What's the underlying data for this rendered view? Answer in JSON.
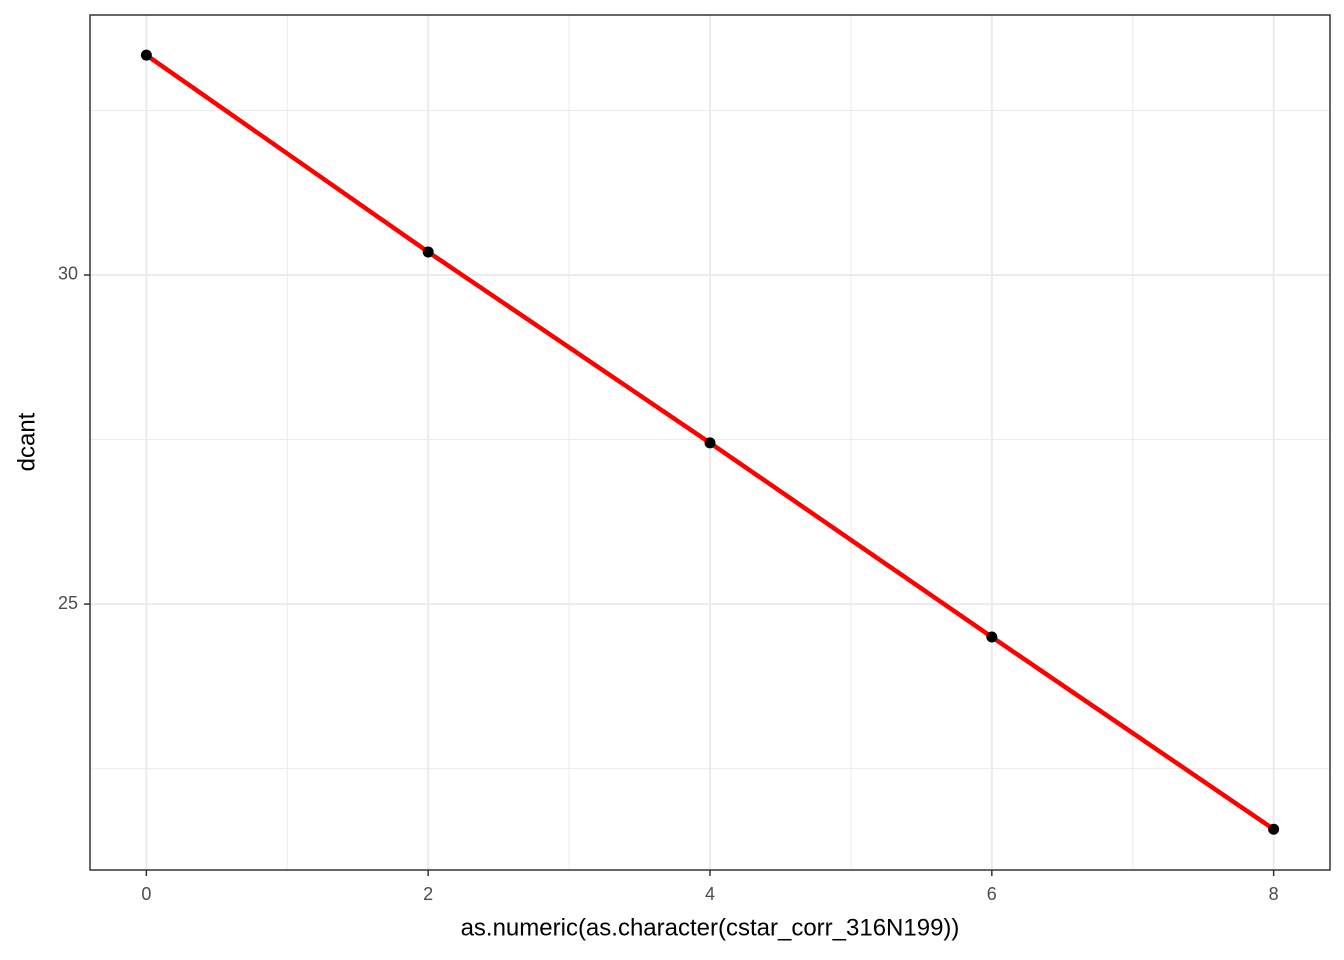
{
  "chart_data": {
    "type": "line",
    "x_label": "as.numeric(as.character(cstar_corr_316N199))",
    "y_label": "dcant",
    "series": [
      {
        "x": [
          0,
          2,
          4,
          6,
          8
        ],
        "values": [
          33.34,
          30.35,
          27.45,
          24.5,
          21.58
        ],
        "color": "#ff0000",
        "point_color": "#000000"
      }
    ],
    "xlim": [
      -0.4,
      8.4
    ],
    "xticks": [
      0,
      2,
      4,
      6,
      8
    ],
    "ylim": [
      20.96,
      33.95
    ],
    "yticks": [
      25,
      30
    ],
    "grid": true,
    "minor_grid": true
  }
}
